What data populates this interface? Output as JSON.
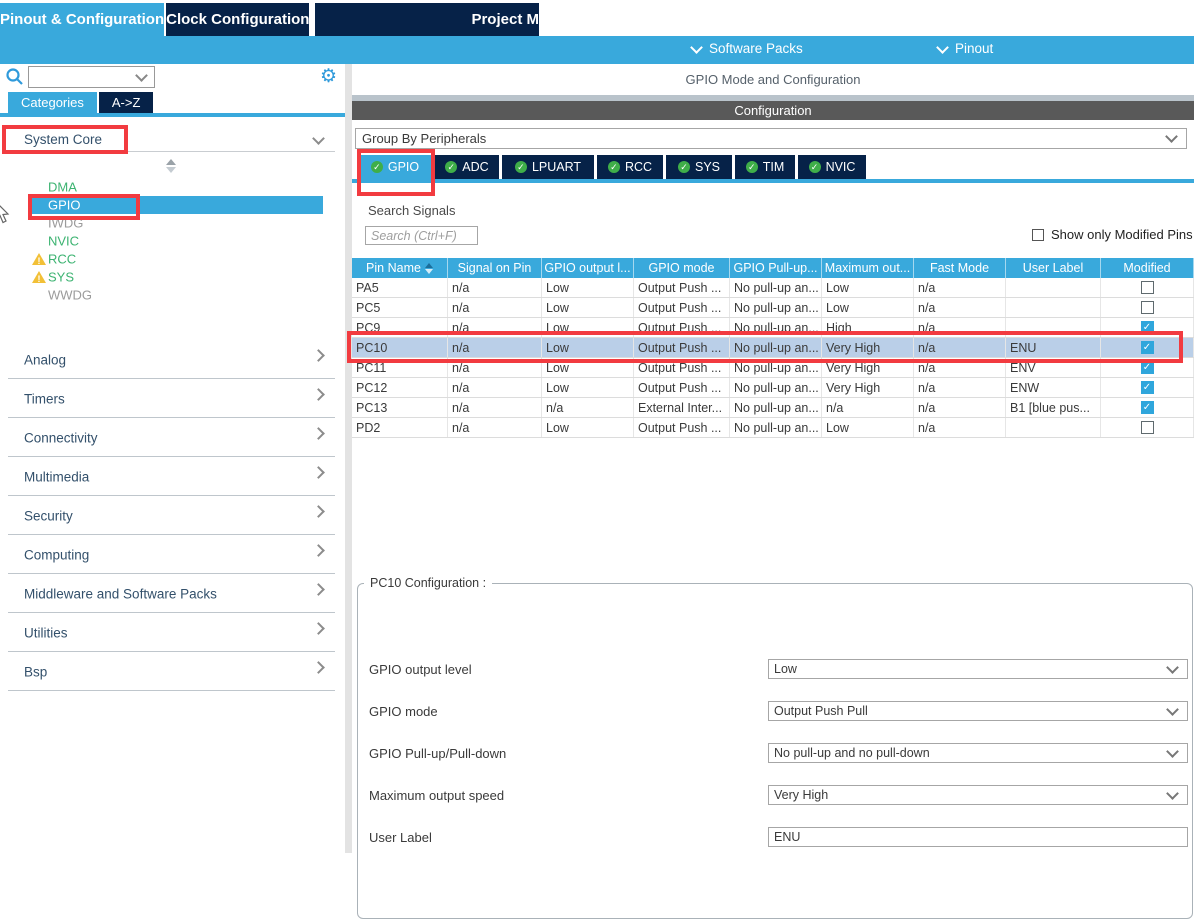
{
  "header": {
    "tabs": [
      {
        "label": "Pinout & Configuration",
        "active": true
      },
      {
        "label": "Clock Configuration",
        "active": false
      },
      {
        "label": "Project M",
        "active": false
      }
    ],
    "subnav": [
      {
        "label": "Software Packs"
      },
      {
        "label": "Pinout"
      }
    ]
  },
  "sidebar": {
    "search_value": "",
    "tabs": [
      {
        "label": "Categories",
        "active": true
      },
      {
        "label": "A->Z",
        "active": false
      }
    ],
    "section_title": "System Core",
    "tree": [
      {
        "label": "DMA",
        "color": "green"
      },
      {
        "label": "GPIO",
        "selected": true
      },
      {
        "label": "IWDG",
        "color": "gray"
      },
      {
        "label": "NVIC",
        "color": "green"
      },
      {
        "label": "RCC",
        "color": "green",
        "warning": true
      },
      {
        "label": "SYS",
        "color": "green",
        "warning": true
      },
      {
        "label": "WWDG",
        "color": "gray"
      }
    ],
    "categories": [
      "Analog",
      "Timers",
      "Connectivity",
      "Multimedia",
      "Security",
      "Computing",
      "Middleware and Software Packs",
      "Utilities",
      "Bsp"
    ]
  },
  "main": {
    "title": "GPIO Mode and Configuration",
    "config_bar": "Configuration",
    "group_by": "Group By Peripherals",
    "peripheral_tabs": [
      {
        "label": "GPIO",
        "active": true
      },
      {
        "label": "ADC",
        "active": false
      },
      {
        "label": "LPUART",
        "active": false
      },
      {
        "label": "RCC",
        "active": false
      },
      {
        "label": "SYS",
        "active": false
      },
      {
        "label": "TIM",
        "active": false
      },
      {
        "label": "NVIC",
        "active": false
      }
    ],
    "search_signals": {
      "label": "Search Signals",
      "placeholder": "Search (Ctrl+F)"
    },
    "show_only_modified_label": "Show only Modified Pins",
    "show_only_modified_checked": false,
    "table": {
      "columns": [
        {
          "label": "Pin Name",
          "sortable": true
        },
        {
          "label": "Signal on Pin"
        },
        {
          "label": "GPIO output l..."
        },
        {
          "label": "GPIO mode"
        },
        {
          "label": "GPIO Pull-up..."
        },
        {
          "label": "Maximum out..."
        },
        {
          "label": "Fast Mode"
        },
        {
          "label": "User Label"
        },
        {
          "label": "Modified"
        }
      ],
      "rows": [
        {
          "cells": [
            "PA5",
            "n/a",
            "Low",
            "Output Push ...",
            "No pull-up an...",
            "Low",
            "n/a",
            ""
          ],
          "modified": false,
          "selected": false
        },
        {
          "cells": [
            "PC5",
            "n/a",
            "Low",
            "Output Push ...",
            "No pull-up an...",
            "Low",
            "n/a",
            ""
          ],
          "modified": false,
          "selected": false
        },
        {
          "cells": [
            "PC9",
            "n/a",
            "Low",
            "Output Push ...",
            "No pull-up an...",
            "High",
            "n/a",
            ""
          ],
          "modified": true,
          "selected": false
        },
        {
          "cells": [
            "PC10",
            "n/a",
            "Low",
            "Output Push ...",
            "No pull-up an...",
            "Very High",
            "n/a",
            "ENU"
          ],
          "modified": true,
          "selected": true
        },
        {
          "cells": [
            "PC11",
            "n/a",
            "Low",
            "Output Push ...",
            "No pull-up an...",
            "Very High",
            "n/a",
            "ENV"
          ],
          "modified": true,
          "selected": false
        },
        {
          "cells": [
            "PC12",
            "n/a",
            "Low",
            "Output Push ...",
            "No pull-up an...",
            "Very High",
            "n/a",
            "ENW"
          ],
          "modified": true,
          "selected": false
        },
        {
          "cells": [
            "PC13",
            "n/a",
            "n/a",
            "External Inter...",
            "No pull-up an...",
            "n/a",
            "n/a",
            "B1 [blue pus..."
          ],
          "modified": true,
          "selected": false
        },
        {
          "cells": [
            "PD2",
            "n/a",
            "Low",
            "Output Push ...",
            "No pull-up an...",
            "Low",
            "n/a",
            ""
          ],
          "modified": false,
          "selected": false
        }
      ]
    },
    "config_group": {
      "legend": "PC10 Configuration :",
      "fields": [
        {
          "label": "GPIO output level",
          "value": "Low",
          "type": "select"
        },
        {
          "label": "GPIO mode",
          "value": "Output Push Pull",
          "type": "select"
        },
        {
          "label": "GPIO Pull-up/Pull-down",
          "value": "No pull-up and no pull-down",
          "type": "select"
        },
        {
          "label": "Maximum output speed",
          "value": "Very High",
          "type": "select"
        },
        {
          "label": "User Label",
          "value": "ENU",
          "type": "text"
        }
      ]
    }
  },
  "icons": {
    "search": "magnifier",
    "settings": "gear",
    "warning": "yellow-triangle-exclamation",
    "tab_status": "green-check-circle",
    "sort": "up-down-triangles",
    "chevron_down": "v",
    "chevron_right": ">"
  },
  "colors": {
    "accent_blue": "#39A9DC",
    "navy": "#062248",
    "annotation_red": "#F23B40",
    "selected_row": "#BACFE8",
    "tree_green": "#3CB371",
    "config_bar_gray": "#595959",
    "checkbox_checked": "#2FA6DC"
  }
}
